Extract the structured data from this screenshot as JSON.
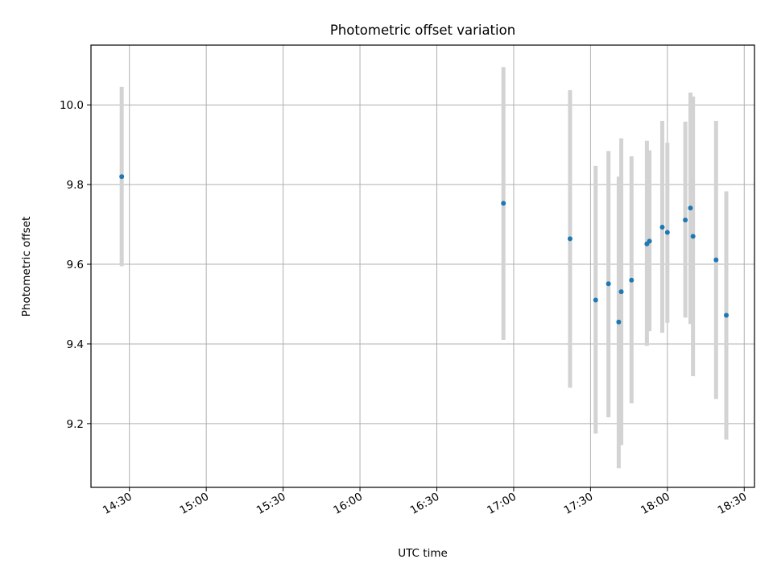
{
  "chart_data": {
    "type": "scatter",
    "title": "Photometric offset variation",
    "xlabel": "UTC time",
    "ylabel": "Photometric offset",
    "x_ticks": [
      "14:30",
      "15:00",
      "15:30",
      "16:00",
      "16:30",
      "17:00",
      "17:30",
      "18:00",
      "18:30"
    ],
    "y_ticks": [
      "9.2",
      "9.4",
      "9.6",
      "9.8",
      "10.0"
    ],
    "xlim": [
      "14:15",
      "18:34"
    ],
    "ylim": [
      9.04,
      10.15
    ],
    "grid": true,
    "colors": {
      "point": "#1f77b4",
      "errorbar": "#d3d3d3",
      "grid": "#b0b0b0"
    },
    "points": [
      {
        "x": "14:27",
        "y": 9.82,
        "y_low": 9.595,
        "y_high": 10.045
      },
      {
        "x": "16:56",
        "y": 9.753,
        "y_low": 9.41,
        "y_high": 10.095
      },
      {
        "x": "17:22",
        "y": 9.664,
        "y_low": 9.29,
        "y_high": 10.037
      },
      {
        "x": "17:32",
        "y": 9.51,
        "y_low": 9.175,
        "y_high": 9.847
      },
      {
        "x": "17:37",
        "y": 9.551,
        "y_low": 9.216,
        "y_high": 9.884
      },
      {
        "x": "17:41",
        "y": 9.455,
        "y_low": 9.088,
        "y_high": 9.82
      },
      {
        "x": "17:42",
        "y": 9.531,
        "y_low": 9.146,
        "y_high": 9.916
      },
      {
        "x": "17:46",
        "y": 9.56,
        "y_low": 9.251,
        "y_high": 9.871
      },
      {
        "x": "17:52",
        "y": 9.651,
        "y_low": 9.395,
        "y_high": 9.91
      },
      {
        "x": "17:53",
        "y": 9.658,
        "y_low": 9.432,
        "y_high": 9.886
      },
      {
        "x": "17:58",
        "y": 9.693,
        "y_low": 9.428,
        "y_high": 9.96
      },
      {
        "x": "18:00",
        "y": 9.68,
        "y_low": 9.453,
        "y_high": 9.905
      },
      {
        "x": "18:07",
        "y": 9.711,
        "y_low": 9.466,
        "y_high": 9.958
      },
      {
        "x": "18:09",
        "y": 9.741,
        "y_low": 9.45,
        "y_high": 10.031
      },
      {
        "x": "18:10",
        "y": 9.67,
        "y_low": 9.319,
        "y_high": 10.021
      },
      {
        "x": "18:19",
        "y": 9.611,
        "y_low": 9.262,
        "y_high": 9.96
      },
      {
        "x": "18:23",
        "y": 9.472,
        "y_low": 9.16,
        "y_high": 9.783
      }
    ]
  }
}
